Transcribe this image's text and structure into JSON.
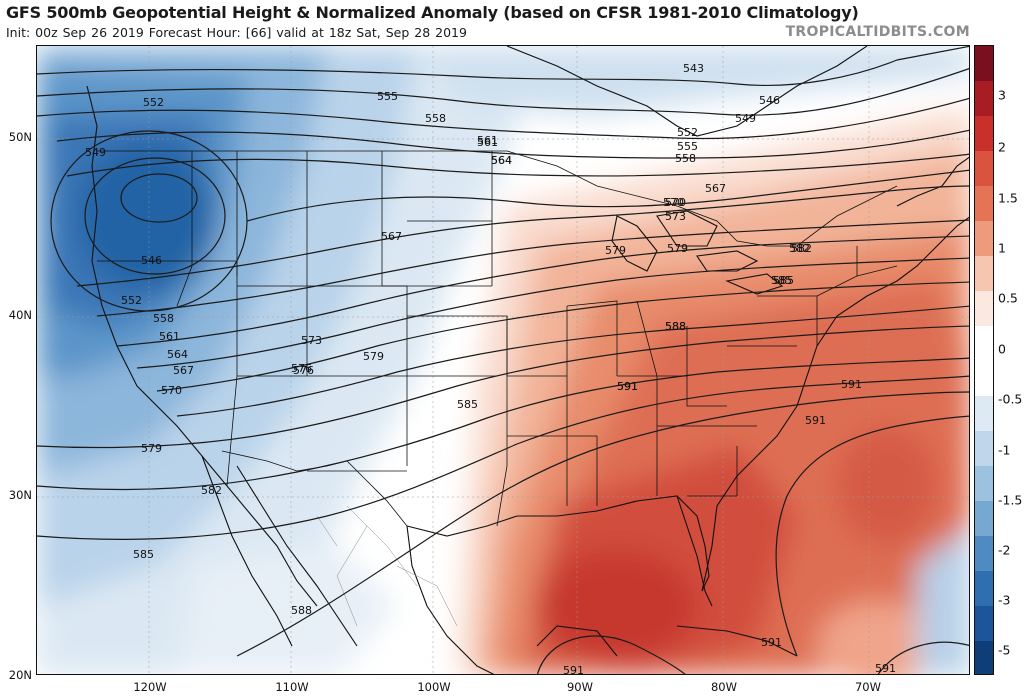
{
  "header": {
    "title": "GFS 500mb Geopotential Height & Normalized Anomaly (based on CFSR 1981-2010 Climatology)",
    "subtitle": "Init: 00z Sep 26 2019   Forecast Hour: [66]   valid at 18z Sat, Sep 28 2019",
    "credit": "TROPICALTIDBITS.COM"
  },
  "axes": {
    "lat_labels": [
      "50N",
      "40N",
      "30N",
      "20N"
    ],
    "lon_labels": [
      "120W",
      "110W",
      "100W",
      "90W",
      "80W",
      "70W"
    ]
  },
  "colorbar": {
    "labels": [
      "3",
      "2",
      "1.5",
      "1",
      "0.5",
      "0",
      "-0.5",
      "-1",
      "-1.5",
      "-2",
      "-3",
      "-5"
    ],
    "colors": [
      "#7a0f1e",
      "#a81c24",
      "#c9302c",
      "#d9533f",
      "#e57457",
      "#ee9a7c",
      "#f6c6b0",
      "#fbe8df",
      "#ffffff",
      "#ffffff",
      "#dde9f3",
      "#c0d6ea",
      "#9dc2df",
      "#77a8d2",
      "#4f8bc2",
      "#2f6fb0",
      "#1c5599",
      "#0f3d78"
    ]
  },
  "contours": {
    "unit": "dam",
    "labels": [
      "543",
      "546",
      "549",
      "552",
      "555",
      "558",
      "561",
      "564",
      "567",
      "570",
      "573",
      "576",
      "579",
      "582",
      "585",
      "588",
      "591",
      "552",
      "549",
      "546",
      "552",
      "558",
      "561",
      "564",
      "567",
      "570",
      "579",
      "582",
      "585",
      "588",
      "555",
      "558",
      "561",
      "564",
      "567",
      "573",
      "576",
      "579",
      "585",
      "570",
      "579",
      "582",
      "585",
      "588",
      "591",
      "591",
      "591",
      "591",
      "591",
      "591"
    ]
  },
  "anomaly_regions": {
    "negative": "Pacific Northwest upper low, anomaly below -2.0 near 546 dam center",
    "positive": "Southeast US, Gulf of Mexico and western Atlantic ridge, anomaly up to +2.0"
  }
}
